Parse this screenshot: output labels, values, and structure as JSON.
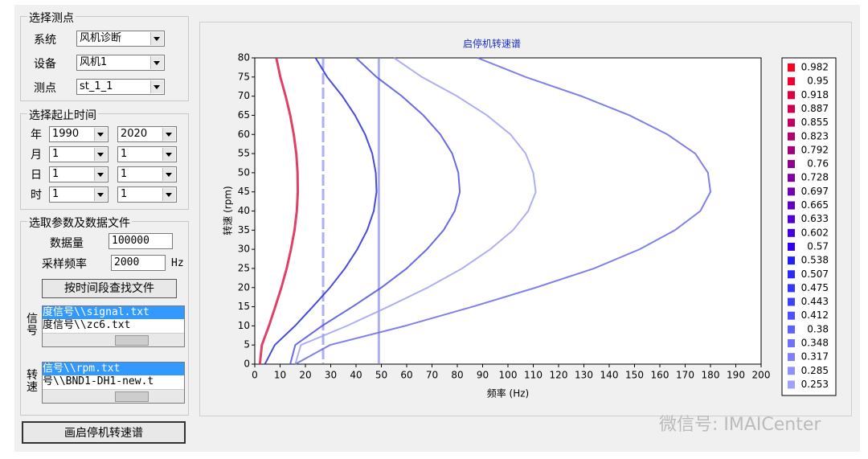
{
  "station_group": {
    "title": "选择测点",
    "rows": [
      {
        "label": "系统",
        "value": "风机诊断"
      },
      {
        "label": "设备",
        "value": "风机1"
      },
      {
        "label": "测点",
        "value": "st_1_1"
      }
    ]
  },
  "time_group": {
    "title": "选择起止时间",
    "rows": [
      {
        "label": "年",
        "start": "1990",
        "end": "2020"
      },
      {
        "label": "月",
        "start": "1",
        "end": "1"
      },
      {
        "label": "日",
        "start": "1",
        "end": "1"
      },
      {
        "label": "时",
        "start": "1",
        "end": "1"
      }
    ]
  },
  "param_group": {
    "title": "选取参数及数据文件",
    "data_amount": {
      "label": "数据量",
      "value": "100000"
    },
    "sample_rate": {
      "label": "采样频率",
      "value": "2000",
      "unit": "Hz"
    },
    "search_button": "按时间段查找文件",
    "signal_list": {
      "label": "信号",
      "items": [
        "度信号\\\\signal.txt",
        "度信号\\\\zc6.txt"
      ]
    },
    "speed_list": {
      "label": "转速",
      "items": [
        "信号\\\\rpm.txt",
        "号\\\\BND1-DH1-new.t"
      ]
    }
  },
  "draw_button": "画启停机转速谱",
  "watermark": "微信号: IMAICenter",
  "chart_data": {
    "type": "heatmap",
    "title": "启停机转速谱",
    "x_label": "频率 (Hz)",
    "y_label": "转速 (rpm)",
    "xlim": [
      0,
      200
    ],
    "xticks": [
      0,
      10,
      20,
      30,
      40,
      50,
      60,
      70,
      80,
      90,
      100,
      110,
      120,
      130,
      140,
      150,
      160,
      170,
      180,
      190,
      200
    ],
    "ylim": [
      0,
      80
    ],
    "yticks": [
      0,
      5,
      10,
      15,
      20,
      25,
      30,
      35,
      40,
      45,
      50,
      55,
      60,
      65,
      70,
      75,
      80
    ],
    "y": [
      0,
      5,
      10,
      15,
      20,
      25,
      30,
      35,
      40,
      45,
      50,
      55,
      60,
      65,
      70,
      75,
      80
    ],
    "series": [
      {
        "color": "#d8204a",
        "values": [
          2,
          2.8,
          5.6,
          8.1,
          10.5,
          12.6,
          14.3,
          15.7,
          16.6,
          17,
          16.9,
          16.4,
          15.4,
          14,
          12.2,
          10.1,
          8.5
        ]
      },
      {
        "color": "#2a2ad8",
        "values": [
          4,
          7.9,
          15.9,
          22.9,
          29.7,
          35.6,
          40.5,
          44.4,
          47,
          48.1,
          47.8,
          46.4,
          43.6,
          39.6,
          34.6,
          28.6,
          24
        ]
      },
      {
        "color": "#5050e0",
        "values": [
          14,
          16,
          26.6,
          38.6,
          50,
          60,
          68,
          74.6,
          79,
          81,
          80.4,
          78,
          73.3,
          66.6,
          58.1,
          48.1,
          40
        ]
      },
      {
        "color": "#a0a0f0",
        "values": [
          16,
          18.2,
          36.4,
          52.7,
          68.3,
          81.9,
          93,
          102,
          108,
          111,
          110,
          107,
          101,
          91.7,
          79.9,
          66,
          55
        ]
      },
      {
        "color": "#6a6ae6",
        "values": [
          16,
          29.7,
          59.4,
          86,
          111,
          134,
          152,
          166,
          176,
          180,
          179,
          174,
          163,
          148,
          129,
          107,
          88
        ]
      }
    ],
    "vlines": [
      27,
      49
    ],
    "vline_dashed": [
      true,
      false
    ],
    "vline_color": "#7a7aea",
    "colorbar": {
      "ticks": [
        0.982,
        0.95,
        0.918,
        0.887,
        0.855,
        0.823,
        0.792,
        0.76,
        0.728,
        0.697,
        0.665,
        0.633,
        0.602,
        0.57,
        0.538,
        0.507,
        0.475,
        0.443,
        0.412,
        0.38,
        0.348,
        0.317,
        0.285,
        0.253
      ],
      "colors": [
        "#ff0020",
        "#f00030",
        "#e00040",
        "#d00050",
        "#c00060",
        "#b00070",
        "#a00080",
        "#900090",
        "#8000a0",
        "#7000b0",
        "#6000c0",
        "#5000d0",
        "#4000e0",
        "#3000f0",
        "#2020ff",
        "#2a2aff",
        "#3535ff",
        "#4040ff",
        "#5050ff",
        "#6060ff",
        "#7070ff",
        "#8080ff",
        "#9090ff",
        "#a0a0ff"
      ]
    }
  }
}
